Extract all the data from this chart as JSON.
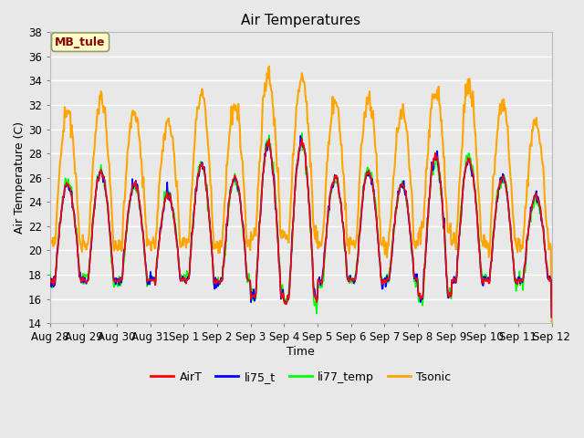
{
  "title": "Air Temperatures",
  "xlabel": "Time",
  "ylabel": "Air Temperature (C)",
  "ylim": [
    14,
    38
  ],
  "yticks": [
    14,
    16,
    18,
    20,
    22,
    24,
    26,
    28,
    30,
    32,
    34,
    36,
    38
  ],
  "fig_bg_color": "#e8e8e8",
  "plot_bg_color": "#e8e8e8",
  "grid_color": "white",
  "series": [
    "AirT",
    "li75_t",
    "li77_temp",
    "Tsonic"
  ],
  "colors": [
    "red",
    "blue",
    "lime",
    "orange"
  ],
  "annotation_text": "MB_tule",
  "annotation_color": "#8b0000",
  "annotation_bg": "#ffffcc",
  "annotation_border": "#999966",
  "tick_labels": [
    "Aug 28",
    "Aug 29",
    "Aug 30",
    "Aug 31",
    "Sep 1",
    "Sep 2",
    "Sep 3",
    "Sep 4",
    "Sep 5",
    "Sep 6",
    "Sep 7",
    "Sep 8",
    "Sep 9",
    "Sep 10",
    "Sep 11",
    "Sep 12"
  ],
  "figsize": [
    6.4,
    4.8
  ],
  "dpi": 100
}
